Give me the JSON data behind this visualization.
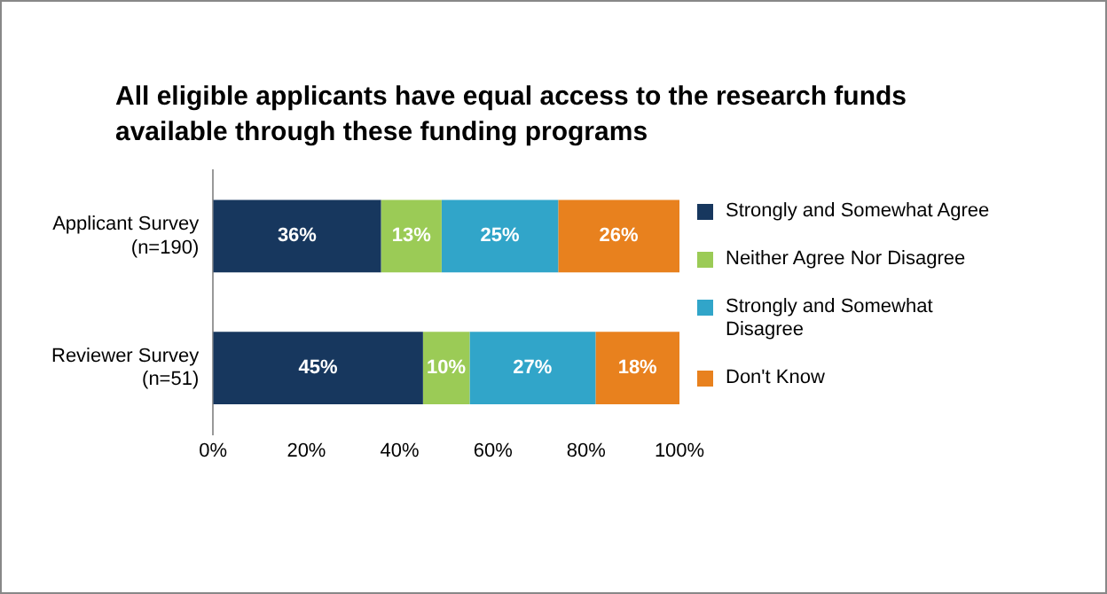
{
  "chart_data": {
    "type": "bar",
    "orientation": "horizontal",
    "stacked": true,
    "title": "All eligible applicants have equal access to the research funds available through these funding programs",
    "categories": [
      "Applicant Survey\n(n=190)",
      "Reviewer Survey\n(n=51)"
    ],
    "series": [
      {
        "name": "Strongly and Somewhat Agree",
        "color": "#17375e",
        "values": [
          36,
          45
        ],
        "value_labels": [
          "36%",
          "45%"
        ]
      },
      {
        "name": "Neither Agree Nor Disagree",
        "color": "#9bcb56",
        "values": [
          13,
          10
        ],
        "value_labels": [
          "13%",
          "10%"
        ]
      },
      {
        "name": "Strongly and Somewhat Disagree",
        "color": "#31a5c9",
        "values": [
          25,
          27
        ],
        "value_labels": [
          "25%",
          "27%"
        ]
      },
      {
        "name": "Don't Know",
        "color": "#e8811e",
        "values": [
          26,
          18
        ],
        "value_labels": [
          "26%",
          "18%"
        ]
      }
    ],
    "xlim": [
      0,
      100
    ],
    "xticks": [
      {
        "value": 0,
        "label": "0%"
      },
      {
        "value": 20,
        "label": "20%"
      },
      {
        "value": 40,
        "label": "40%"
      },
      {
        "value": 60,
        "label": "60%"
      },
      {
        "value": 80,
        "label": "80%"
      },
      {
        "value": 100,
        "label": "100%"
      }
    ],
    "grid": false,
    "legend": "right"
  }
}
